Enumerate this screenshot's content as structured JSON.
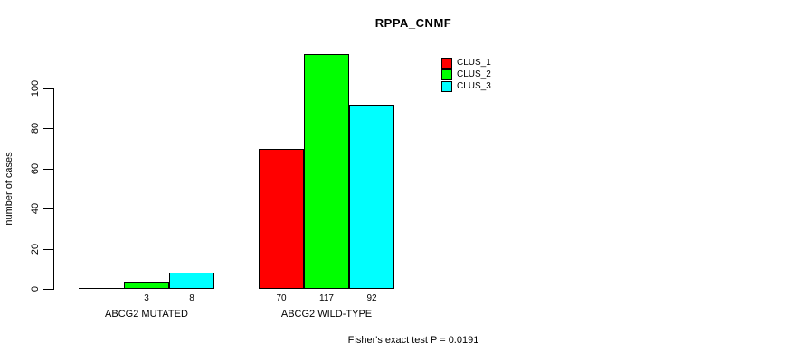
{
  "title": "RPPA_CNMF",
  "footnote": "Fisher's exact test P = 0.0191",
  "legend": {
    "position": "top-right",
    "entries": [
      {
        "label": "CLUS_1",
        "color": "#ff0000"
      },
      {
        "label": "CLUS_2",
        "color": "#00ff00"
      },
      {
        "label": "CLUS_3",
        "color": "#00ffff"
      }
    ]
  },
  "chart_data": {
    "type": "bar",
    "title": "RPPA_CNMF",
    "xlabel": "",
    "ylabel": "number of cases",
    "categories": [
      "ABCG2 MUTATED",
      "ABCG2 WILD-TYPE"
    ],
    "series": [
      {
        "name": "CLUS_1",
        "color": "#ff0000",
        "values": [
          0,
          70
        ]
      },
      {
        "name": "CLUS_2",
        "color": "#00ff00",
        "values": [
          3,
          117
        ]
      },
      {
        "name": "CLUS_3",
        "color": "#00ffff",
        "values": [
          8,
          92
        ]
      }
    ],
    "bar_value_labels": [
      [
        "",
        "3",
        "8"
      ],
      [
        "70",
        "117",
        "92"
      ]
    ],
    "yticks": [
      0,
      20,
      40,
      60,
      80,
      100
    ],
    "ylim": [
      0,
      100
    ],
    "grid": false,
    "legend_position": "top-right",
    "annotation": "Fisher's exact test P = 0.0191"
  }
}
